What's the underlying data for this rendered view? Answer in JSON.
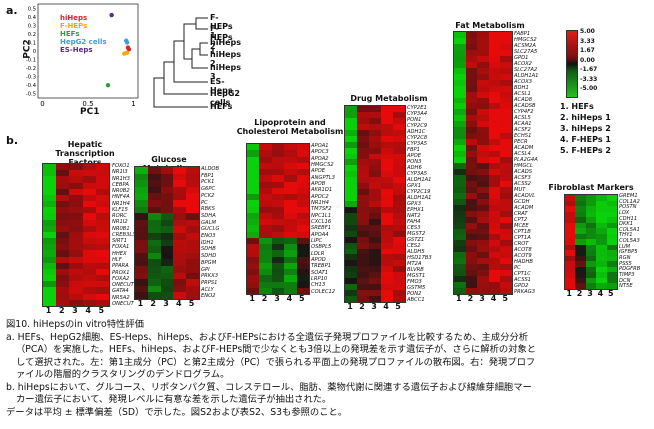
{
  "panel_a": "a.",
  "panel_b": "b.",
  "pca": {
    "xlabel": "PC1",
    "ylabel": "PC2",
    "xticks": [
      "0",
      "0.5",
      "1"
    ],
    "yticks": [
      "0.5",
      "0.4",
      "0.3",
      "0.2",
      "0.1",
      "0",
      "-0.1",
      "-0.2",
      "-0.3",
      "-0.4",
      "-0.5"
    ],
    "legend": [
      {
        "label": "hiHeps",
        "color": "#e0202a"
      },
      {
        "label": "F-HEPs",
        "color": "#f2a900"
      },
      {
        "label": "HEFs",
        "color": "#3a9a3a"
      },
      {
        "label": "HepG2 cells",
        "color": "#3aa0d8"
      },
      {
        "label": "ES-Heps",
        "color": "#5a2a8a"
      }
    ],
    "points": [
      {
        "group": "ES-Heps",
        "pc1": 0.76,
        "pc2": 0.42
      },
      {
        "group": "HepG2 cells",
        "pc1": 0.92,
        "pc2": 0.12
      },
      {
        "group": "HepG2 cells",
        "pc1": 0.93,
        "pc2": 0.1
      },
      {
        "group": "hiHeps",
        "pc1": 0.94,
        "pc2": 0.04
      },
      {
        "group": "hiHeps",
        "pc1": 0.95,
        "pc2": 0.02
      },
      {
        "group": "F-HEPs",
        "pc1": 0.93,
        "pc2": -0.02
      },
      {
        "group": "F-HEPs",
        "pc1": 0.9,
        "pc2": -0.03
      },
      {
        "group": "HEFs",
        "pc1": 0.72,
        "pc2": -0.4
      }
    ]
  },
  "dendrogram": [
    "F-HEPs 1",
    "F-HEPs 2",
    "hiHeps 1",
    "hiHeps 2",
    "hiHeps 3",
    "ES-Heps",
    "HepG2 cells",
    "HEFs"
  ],
  "color_scale": [
    "5.00",
    "3.33",
    "1.67",
    "0.00",
    "-1.67",
    "-3.33",
    "-5.00"
  ],
  "sample_key": [
    "1. HEFs",
    "2. hiHeps 1",
    "3. hiHeps 2",
    "4. F-HEPs 1",
    "5. F-HEPs 2"
  ],
  "col_numbers": [
    "1",
    "2",
    "3",
    "4",
    "5"
  ],
  "heatmaps": {
    "hepatic": {
      "title": "Hepatic Transcription Factors",
      "genes": [
        "FOXO1",
        "NR1I3",
        "NR1H3",
        "CEBPA",
        "NR0B2",
        "HNF4A",
        "NR1H4",
        "KLF15",
        "RORC",
        "NR1I2",
        "NR0B1",
        "CREB3L3",
        "SIRT1",
        "FOXA1",
        "HHEX",
        "HLF",
        "PPARA",
        "PROX1",
        "FOXA2",
        "ONECUT2",
        "GATA4",
        "NR5A2",
        "ONECUT"
      ]
    },
    "glucose": {
      "title": "Glucose Metabolism",
      "genes": [
        "ALDOB",
        "FBP1",
        "PCK1",
        "G6PC",
        "PCK2",
        "PC",
        "RBKS",
        "SDHA",
        "GALM",
        "GUCLG",
        "ENO3",
        "IDH1",
        "SDHB",
        "SDHD",
        "BPGM",
        "GPI",
        "PRKX3",
        "PRPS1",
        "ACLY",
        "ENO2"
      ]
    },
    "lipo": {
      "title": "Lipoprotein and Cholesterol Metabolism",
      "genes": [
        "APOA1",
        "APOC3",
        "APOA2",
        "HMGCS2",
        "APOE",
        "ANGPTL3",
        "APOB",
        "AKR1D1",
        "APOC2",
        "NR1H4",
        "TM7SF2",
        "NPC1L1",
        "CXCL16",
        "SREBF1",
        "APOA4",
        "LIPC",
        "OSBPL5",
        "LDLR",
        "APOD",
        "TREBP1",
        "SOAT1",
        "LRP10",
        "CH13",
        "COLEC12"
      ]
    },
    "drug": {
      "title": "Drug Metabolism",
      "genes": [
        "CYP2E1",
        "CYP3A4",
        "PON1",
        "CYP2C9",
        "ADH1C",
        "CYP2C8",
        "CYP3A5",
        "FBP1",
        "APOE",
        "PON3",
        "ADH6",
        "CYP3A5",
        "ALDH1A1",
        "GPX1",
        "CYP2C19",
        "ALDH1A1",
        "GPX3",
        "EPHX1",
        "NAT2",
        "FAH4",
        "CES3",
        "MGST2",
        "GSTZ1",
        "CES2",
        "ALDH5",
        "HSD17B3",
        "MT2A",
        "BLVRB",
        "MGST1",
        "FMO3",
        "GSTM5",
        "PON2",
        "ABCC1"
      ]
    },
    "fat": {
      "title": "Fat Metabolism",
      "genes": [
        "FABP1",
        "HMGCS2",
        "ACSM2A",
        "SLC27A5",
        "GPD1",
        "ACOX2",
        "SLC27A2",
        "ALDH1A1",
        "ACOX3",
        "BDH1",
        "ACSL1",
        "ACAD8",
        "ACADSB",
        "CYP4F2",
        "ACSL5",
        "ACAA1",
        "ACSF2",
        "ECHS1",
        "PECR",
        "ACADM",
        "ACSL4",
        "PLA2G4A",
        "HMGCL",
        "ACADS",
        "ACSF3",
        "ACSS2",
        "MUT",
        "ACADVL",
        "GCDH",
        "ACADM",
        "CRAT",
        "CPT2",
        "MCEE",
        "CPT1B",
        "CPT1A",
        "CROT",
        "ACOT8",
        "ACOT9",
        "HADHB",
        "PC",
        "CPT1C",
        "ACSS1",
        "GPD2",
        "PRKAG3"
      ]
    },
    "fibro": {
      "title": "Fibroblast Markers",
      "genes": [
        "GREM1",
        "COL1A2",
        "POSTN",
        "LOX",
        "CDH11",
        "DKK1",
        "COL5A1",
        "THY1",
        "COL5A3",
        "LUM",
        "IGFBP5",
        "RGN",
        "PSS5",
        "PDGFRB",
        "TIMP3",
        "DCN",
        "NT5E"
      ]
    }
  },
  "caption": {
    "title": "図10. hiHepsのin vitro特性評価",
    "line_a1": "a.  HEFs、HepG2細胞、ES-Heps、hiHeps、およびF-HEPsにおける全遺伝子発現プロファイルを比較するため、主成分分析",
    "line_a2": "（PCA）を実施した。HEFs、hiHeps、およびF-HEPs間で少なくとも3倍以上の発現差を示す遺伝子が、さらに解析の対象と",
    "line_a3": "して選択された。左：第1主成分（PC）と第2主成分（PC）で張られる平面上の発現プロファイルの散布図。右：発現プロフ",
    "line_a4": "ァイルの階層的クラスタリングのデンドログラム。",
    "line_b1": "b.  hiHepsにおいて、グルコース、リポタンパク質、コレステロール、脂肪、薬物代謝に関連する遺伝子および線維芽細胞マー",
    "line_b2": "カー遺伝子において、発現レベルに有意な差を示した遺伝子が抽出された。",
    "line_c": "データは平均 ± 標準偏差（SD）で示した。図S2および表S2、S3も参照のこと。"
  }
}
